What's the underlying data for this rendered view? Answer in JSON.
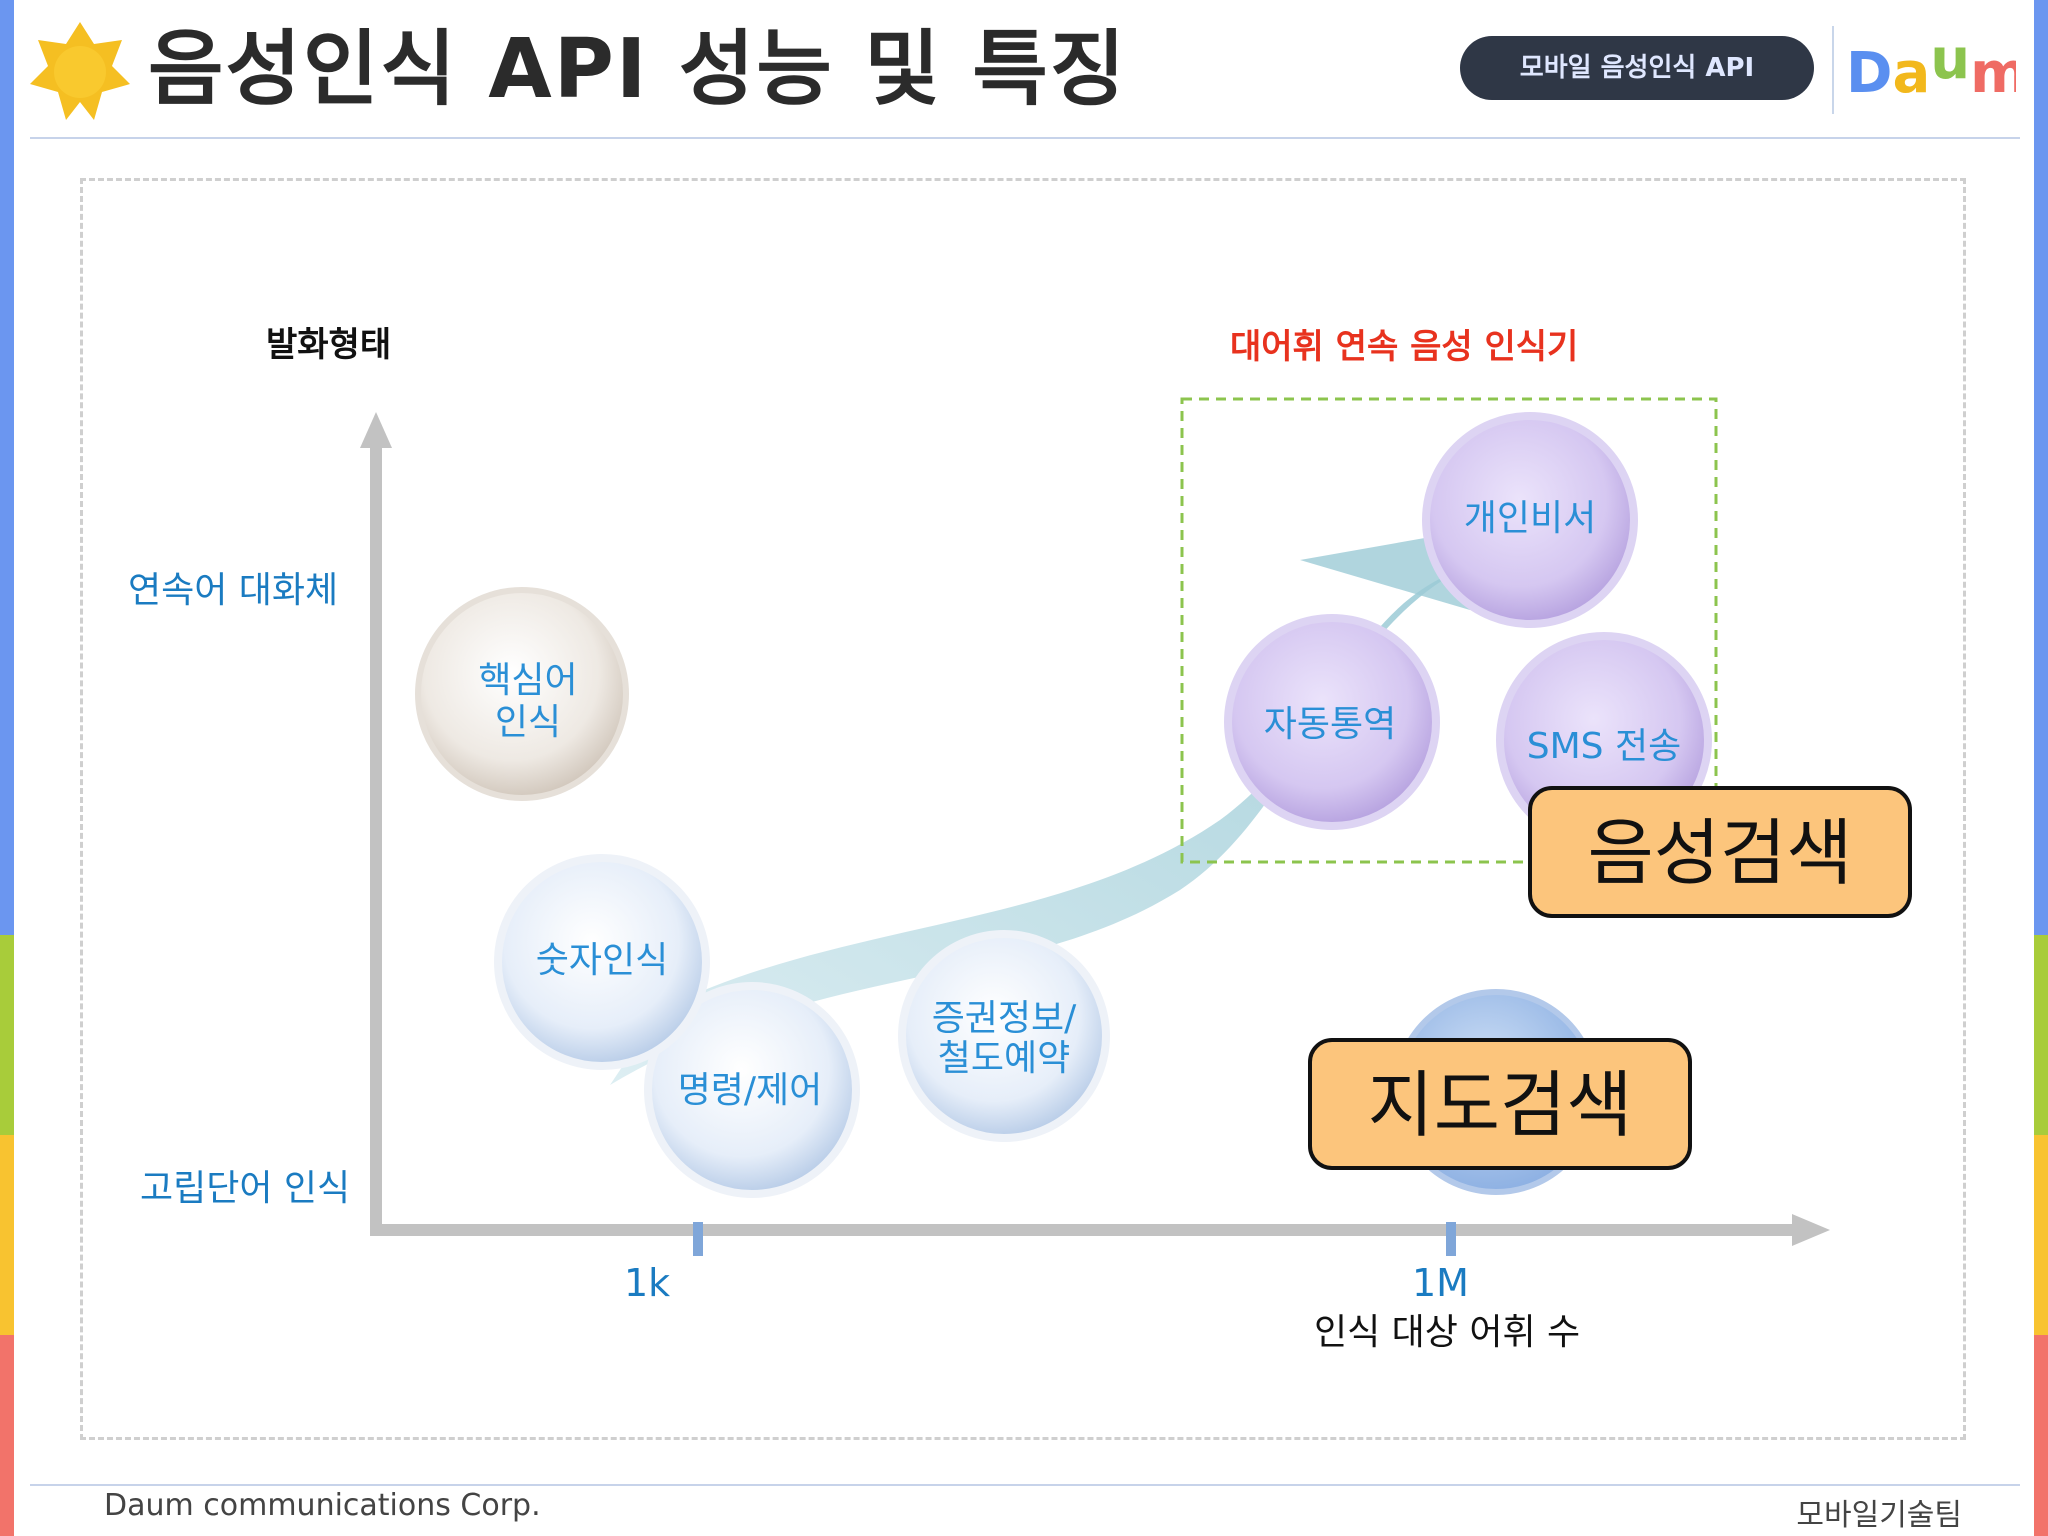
{
  "slide": {
    "title": "음성인식 API 성능 및 특징",
    "badge": "모바일 음성인식 API",
    "logo": "Daum",
    "footer_left": "Daum communications Corp.",
    "footer_right": "모바일기술팀"
  },
  "diagram": {
    "y_axis_title": "발화형태",
    "y_levels": {
      "top": "연속어 대화체",
      "bottom": "고립단어 인식"
    },
    "x_ticks": [
      "1k",
      "1M"
    ],
    "x_axis_title": "인식 대상 어휘 수",
    "highlight_label": "대어휘 연속 음성 인식기",
    "bubbles": {
      "keyword_line1": "핵심어",
      "keyword_line2": "인식",
      "number": "숫자인식",
      "command": "명령/제어",
      "stock_line1": "증권정보/",
      "stock_line2": "철도예약",
      "personal": "개인비서",
      "translate": "자동통역",
      "sms": "SMS 전송"
    },
    "callouts": {
      "voice_search": "음성검색",
      "map_search": "지도검색"
    }
  },
  "colors": {
    "title_icon": "#f5bf22",
    "badge_bg": "#2f3746",
    "y_level_text": "#1a7bc1",
    "bubble_text": "#2a8fd6",
    "highlight_label": "#e8321e",
    "highlight_box": "#8cc44e",
    "callout_fill": "#fcc57c",
    "strip_blue": "#6b96f0",
    "strip_green": "#a8cc3a",
    "strip_yellow": "#f8c330",
    "strip_red": "#f2736a"
  }
}
